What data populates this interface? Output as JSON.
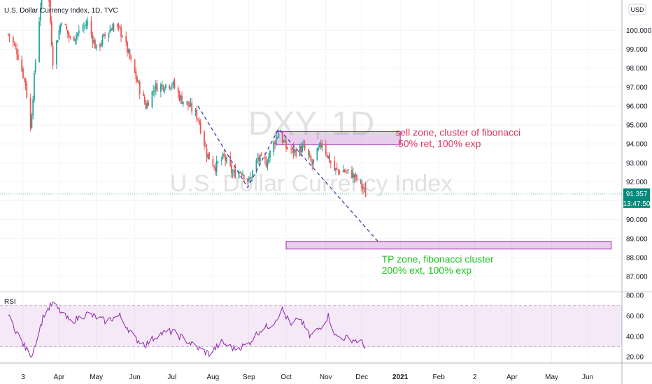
{
  "header": {
    "symbol_title": "U.S. Dollar Currency Index, 1D, TVC",
    "currency_badge": "USD"
  },
  "watermark": {
    "line1": "DXY, 1D",
    "line2": "U.S. Dollar Currency Index"
  },
  "price_badges": {
    "last_price": "91.357",
    "countdown": "13:47:50",
    "color": "#00897b"
  },
  "chart_data": [
    {
      "type": "candlestick",
      "title": "U.S. Dollar Currency Index, 1D, TVC",
      "y_ticks": [
        "100.000",
        "99.000",
        "98.000",
        "97.000",
        "96.000",
        "95.000",
        "94.000",
        "93.000",
        "92.000",
        "91.000",
        "90.000",
        "89.000",
        "88.000",
        "87.000"
      ],
      "ylim": [
        86.3,
        101.6
      ],
      "x_ticks": [
        "3",
        "Apr",
        "May",
        "Jun",
        "Jul",
        "Aug",
        "Sep",
        "Oct",
        "Nov",
        "Dec",
        "2021",
        "Feb",
        "2",
        "Apr",
        "May",
        "Jun"
      ],
      "x_tick_values": [
        "2020-03-03",
        "2020-04-01",
        "2020-05-01",
        "2020-06-01",
        "2020-07-01",
        "2020-08-03",
        "2020-09-01",
        "2020-10-01",
        "2020-11-02",
        "2020-12-01",
        "2021-01-01",
        "2021-02-01",
        "2021-03-02",
        "2021-04-01",
        "2021-05-03",
        "2021-06-01"
      ],
      "up_color": "#26a69a",
      "down_color": "#ef5350",
      "close_path": [
        [
          "2020-02-20",
          99.8
        ],
        [
          "2020-02-27",
          98.9
        ],
        [
          "2020-03-05",
          97.2
        ],
        [
          "2020-03-09",
          94.8
        ],
        [
          "2020-03-13",
          98.4
        ],
        [
          "2020-03-19",
          102.8
        ],
        [
          "2020-03-23",
          102.5
        ],
        [
          "2020-03-27",
          98.4
        ],
        [
          "2020-04-03",
          100.6
        ],
        [
          "2020-04-10",
          99.5
        ],
        [
          "2020-04-17",
          99.9
        ],
        [
          "2020-04-24",
          100.4
        ],
        [
          "2020-05-01",
          99.0
        ],
        [
          "2020-05-08",
          99.7
        ],
        [
          "2020-05-15",
          100.3
        ],
        [
          "2020-05-22",
          99.8
        ],
        [
          "2020-05-29",
          98.3
        ],
        [
          "2020-06-05",
          96.9
        ],
        [
          "2020-06-10",
          96.0
        ],
        [
          "2020-06-17",
          97.0
        ],
        [
          "2020-06-24",
          97.1
        ],
        [
          "2020-07-01",
          97.2
        ],
        [
          "2020-07-08",
          96.4
        ],
        [
          "2020-07-15",
          96.0
        ],
        [
          "2020-07-22",
          95.4
        ],
        [
          "2020-07-29",
          93.5
        ],
        [
          "2020-08-05",
          92.8
        ],
        [
          "2020-08-12",
          93.3
        ],
        [
          "2020-08-19",
          92.4
        ],
        [
          "2020-08-26",
          92.6
        ],
        [
          "2020-09-01",
          92.0
        ],
        [
          "2020-09-08",
          93.2
        ],
        [
          "2020-09-15",
          93.0
        ],
        [
          "2020-09-22",
          94.2
        ],
        [
          "2020-09-25",
          94.6
        ],
        [
          "2020-10-01",
          93.8
        ],
        [
          "2020-10-08",
          93.6
        ],
        [
          "2020-10-15",
          93.8
        ],
        [
          "2020-10-22",
          92.9
        ],
        [
          "2020-10-30",
          94.1
        ],
        [
          "2020-11-04",
          93.3
        ],
        [
          "2020-11-09",
          92.6
        ],
        [
          "2020-11-16",
          92.6
        ],
        [
          "2020-11-23",
          92.4
        ],
        [
          "2020-11-30",
          91.9
        ],
        [
          "2020-12-04",
          91.357
        ]
      ],
      "zones": [
        {
          "label": "sell zone",
          "y_from": 93.95,
          "y_to": 94.65,
          "x_from": "2020-09-23",
          "x_to": "2021-01-01"
        },
        {
          "label": "TP zone",
          "y_from": 88.45,
          "y_to": 88.85,
          "x_from": "2020-10-01",
          "x_to": "2021-06-20"
        }
      ],
      "dashed_lines": [
        [
          [
            "2020-07-22",
            96.0
          ],
          [
            "2020-08-31",
            91.7
          ],
          [
            "2020-09-25",
            94.8
          ],
          [
            "2020-12-14",
            88.85
          ]
        ]
      ],
      "annotations": [
        {
          "lines": [
            "sell zone, cluster of fibonacci",
            ".50% ret, 100% exp"
          ],
          "color": "#e0315a",
          "x": "2021-01-01",
          "y": 94.8
        },
        {
          "lines": [
            "TP zone, fibonacci cluster",
            "200% ext, 100% exp"
          ],
          "color": "#1ec31e",
          "x": "2020-12-17",
          "y": 88.1
        }
      ]
    },
    {
      "type": "line",
      "title": "RSI",
      "y_ticks": [
        "80.00",
        "60.00",
        "40.00",
        "20.00"
      ],
      "ylim": [
        14,
        82
      ],
      "bands": [
        30,
        70
      ],
      "band_color": "#9c27b0",
      "line_color": "#8e24aa",
      "series": [
        {
          "x": [
            "2020-02-20",
            "2020-03-05",
            "2020-03-10",
            "2020-03-20",
            "2020-03-27",
            "2020-04-10",
            "2020-04-24",
            "2020-05-08",
            "2020-05-20",
            "2020-06-01",
            "2020-06-10",
            "2020-06-20",
            "2020-07-01",
            "2020-07-10",
            "2020-07-20",
            "2020-07-31",
            "2020-08-10",
            "2020-08-20",
            "2020-08-31",
            "2020-09-10",
            "2020-09-20",
            "2020-09-28",
            "2020-10-05",
            "2020-10-12",
            "2020-10-20",
            "2020-10-28",
            "2020-11-04",
            "2020-11-10",
            "2020-11-20",
            "2020-11-30",
            "2020-12-04"
          ],
          "y": [
            60,
            28,
            22,
            62,
            72,
            54,
            62,
            55,
            60,
            38,
            32,
            42,
            45,
            38,
            30,
            23,
            34,
            28,
            32,
            46,
            52,
            66,
            50,
            58,
            40,
            48,
            60,
            40,
            38,
            35,
            30
          ]
        }
      ]
    }
  ]
}
